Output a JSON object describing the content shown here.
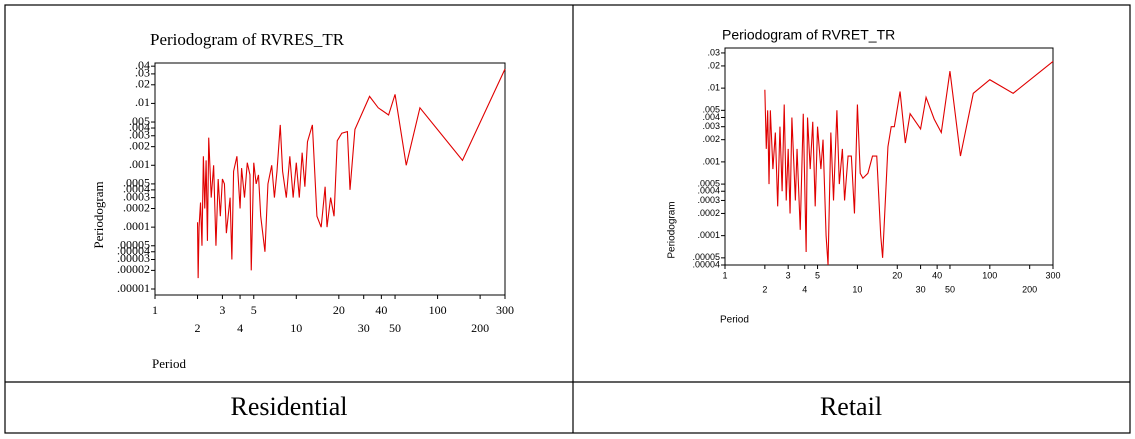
{
  "captions": [
    "Residential",
    "Retail"
  ],
  "chart_data": [
    {
      "type": "line",
      "title": "Periodogram of RVRES_TR",
      "x_label": "Period",
      "y_label": "Periodogram",
      "x_scale": "log",
      "y_scale": "log",
      "grid": false,
      "xlim": [
        1,
        300
      ],
      "ylim": [
        8e-06,
        0.045
      ],
      "xticks": [
        1,
        2,
        3,
        4,
        5,
        10,
        20,
        30,
        40,
        50,
        100,
        200,
        300
      ],
      "yticks": [
        {
          "value": 0.04,
          "label": ".04"
        },
        {
          "value": 0.03,
          "label": ".03"
        },
        {
          "value": 0.02,
          "label": ".02"
        },
        {
          "value": 0.01,
          "label": ".01"
        },
        {
          "value": 0.005,
          "label": ".005"
        },
        {
          "value": 0.004,
          "label": ".004"
        },
        {
          "value": 0.003,
          "label": ".003"
        },
        {
          "value": 0.002,
          "label": ".002"
        },
        {
          "value": 0.001,
          "label": ".001"
        },
        {
          "value": 0.0005,
          "label": ".0005"
        },
        {
          "value": 0.0004,
          "label": ".0004"
        },
        {
          "value": 0.0003,
          "label": ".0003"
        },
        {
          "value": 0.0002,
          "label": ".0002"
        },
        {
          "value": 0.0001,
          "label": ".0001"
        },
        {
          "value": 5e-05,
          "label": ".00005"
        },
        {
          "value": 4e-05,
          "label": ".00004"
        },
        {
          "value": 3e-05,
          "label": ".00003"
        },
        {
          "value": 2e-05,
          "label": ".00002"
        },
        {
          "value": 1e-05,
          "label": ".00001"
        }
      ],
      "color": "#e00000",
      "x": [
        2,
        2.02,
        2.05,
        2.1,
        2.15,
        2.2,
        2.25,
        2.3,
        2.35,
        2.4,
        2.5,
        2.6,
        2.7,
        2.8,
        2.9,
        3,
        3.1,
        3.2,
        3.4,
        3.5,
        3.6,
        3.8,
        4,
        4.1,
        4.3,
        4.5,
        4.7,
        4.8,
        5,
        5.2,
        5.4,
        5.6,
        6,
        6.3,
        6.7,
        7,
        7.3,
        7.7,
        8,
        8.5,
        9,
        9.5,
        10,
        10.5,
        11,
        11.5,
        12,
        13,
        14,
        15,
        16,
        16.5,
        17.5,
        18.5,
        19.5,
        21,
        23,
        24,
        26,
        33,
        38,
        45,
        50,
        60,
        75,
        150,
        300
      ],
      "values": [
        0.00012,
        1.5e-05,
        0.0001,
        0.00025,
        5e-05,
        0.0014,
        0.0002,
        0.0012,
        6e-05,
        0.0028,
        0.0003,
        0.001,
        5e-05,
        0.0006,
        0.00015,
        0.0006,
        0.0005,
        8e-05,
        0.0003,
        3e-05,
        0.0008,
        0.0014,
        0.0002,
        0.0009,
        0.0003,
        0.0011,
        0.0007,
        2e-05,
        0.0011,
        0.0005,
        0.0007,
        0.00015,
        4e-05,
        0.0005,
        0.001,
        0.0003,
        0.0008,
        0.0045,
        0.0008,
        0.0003,
        0.0014,
        0.0003,
        0.0011,
        0.0003,
        0.0016,
        0.00045,
        0.0024,
        0.0045,
        0.00015,
        0.0001,
        0.00045,
        0.0001,
        0.0003,
        0.00015,
        0.0025,
        0.0033,
        0.0035,
        0.0004,
        0.0038,
        0.013,
        0.0085,
        0.0065,
        0.014,
        0.001,
        0.0085,
        0.0012,
        0.036
      ]
    },
    {
      "type": "line",
      "title": "Periodogram of RVRET_TR",
      "x_label": "Period",
      "y_label": "Periodogram",
      "x_scale": "log",
      "y_scale": "log",
      "grid": false,
      "xlim": [
        1,
        300
      ],
      "ylim": [
        4e-05,
        0.035
      ],
      "xticks": [
        1,
        2,
        3,
        4,
        5,
        10,
        20,
        30,
        40,
        50,
        100,
        200,
        300
      ],
      "yticks": [
        {
          "value": 0.03,
          "label": ".03"
        },
        {
          "value": 0.02,
          "label": ".02"
        },
        {
          "value": 0.01,
          "label": ".01"
        },
        {
          "value": 0.005,
          "label": ".005"
        },
        {
          "value": 0.004,
          "label": ".004"
        },
        {
          "value": 0.003,
          "label": ".003"
        },
        {
          "value": 0.002,
          "label": ".002"
        },
        {
          "value": 0.001,
          "label": ".001"
        },
        {
          "value": 0.0005,
          "label": ".0005"
        },
        {
          "value": 0.0004,
          "label": ".0004"
        },
        {
          "value": 0.0003,
          "label": ".0003"
        },
        {
          "value": 0.0002,
          "label": ".0002"
        },
        {
          "value": 0.0001,
          "label": ".0001"
        },
        {
          "value": 5e-05,
          "label": ".00005"
        },
        {
          "value": 4e-05,
          "label": ".00004"
        }
      ],
      "color": "#e00000",
      "x": [
        2,
        2.05,
        2.1,
        2.15,
        2.2,
        2.3,
        2.4,
        2.5,
        2.6,
        2.7,
        2.8,
        2.9,
        3,
        3.1,
        3.2,
        3.4,
        3.5,
        3.7,
        3.9,
        4.1,
        4.2,
        4.4,
        4.6,
        4.8,
        5,
        5.3,
        5.5,
        5.8,
        6,
        6.3,
        6.6,
        7,
        7.3,
        7.7,
        8,
        8.5,
        9,
        9.5,
        10,
        10.5,
        11,
        12,
        13,
        14,
        15,
        15.5,
        17,
        18,
        19,
        21,
        23,
        25,
        30,
        33,
        38,
        43,
        50,
        60,
        75,
        100,
        150,
        300
      ],
      "values": [
        0.0095,
        0.0015,
        0.005,
        0.0005,
        0.005,
        0.0008,
        0.0025,
        0.00025,
        0.003,
        0.0004,
        0.006,
        0.0003,
        0.0015,
        0.0002,
        0.004,
        0.0003,
        0.0015,
        0.00012,
        0.0045,
        6e-05,
        0.004,
        0.0008,
        0.0035,
        0.00025,
        0.003,
        0.0008,
        0.002,
        0.0001,
        4e-05,
        0.0025,
        0.0003,
        0.005,
        0.0005,
        0.0015,
        0.0003,
        0.0012,
        0.0012,
        0.0002,
        0.006,
        0.0007,
        0.0006,
        0.0007,
        0.0012,
        0.0012,
        0.0001,
        5e-05,
        0.0016,
        0.003,
        0.003,
        0.009,
        0.0018,
        0.0045,
        0.0028,
        0.0075,
        0.0038,
        0.0025,
        0.017,
        0.0012,
        0.0085,
        0.013,
        0.0085,
        0.023
      ]
    }
  ]
}
